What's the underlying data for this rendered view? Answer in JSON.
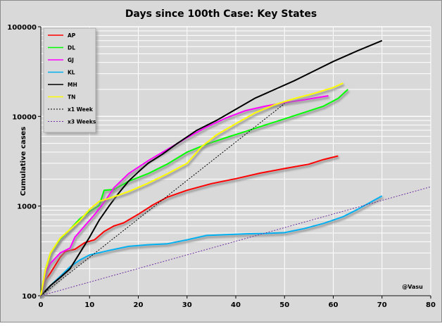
{
  "chart_data": {
    "type": "line",
    "title": "Days since 100th Case: Key States",
    "xlabel": "",
    "ylabel": "Cumulative cases",
    "xlim": [
      0,
      80
    ],
    "ylim": [
      100,
      100000
    ],
    "yscale": "log",
    "x_ticks": [
      0,
      10,
      20,
      30,
      40,
      50,
      60,
      70,
      80
    ],
    "y_ticks": [
      100,
      1000,
      10000,
      100000
    ],
    "y_tick_labels": [
      "100",
      "1000",
      "10000",
      "100000"
    ],
    "grid": true,
    "legend_position": "top-left",
    "annotation": "@Vasu",
    "colors": {
      "background": "#d9d9d9",
      "grid": "#ffffff"
    },
    "series": [
      {
        "name": "AP",
        "color": "#ff0000",
        "shadow": true,
        "points": [
          [
            0,
            100
          ],
          [
            1,
            150
          ],
          [
            2,
            180
          ],
          [
            4,
            270
          ],
          [
            5,
            310
          ],
          [
            7,
            330
          ],
          [
            9,
            390
          ],
          [
            11,
            420
          ],
          [
            13,
            520
          ],
          [
            15,
            600
          ],
          [
            17,
            650
          ],
          [
            20,
            810
          ],
          [
            23,
            1030
          ],
          [
            26,
            1260
          ],
          [
            30,
            1500
          ],
          [
            35,
            1780
          ],
          [
            40,
            2020
          ],
          [
            45,
            2330
          ],
          [
            50,
            2620
          ],
          [
            55,
            2930
          ],
          [
            58,
            3300
          ],
          [
            61,
            3620
          ]
        ]
      },
      {
        "name": "DL",
        "color": "#00ff00",
        "shadow": true,
        "points": [
          [
            0,
            100
          ],
          [
            1,
            200
          ],
          [
            2,
            300
          ],
          [
            4,
            430
          ],
          [
            6,
            550
          ],
          [
            8,
            720
          ],
          [
            10,
            870
          ],
          [
            12,
            1020
          ],
          [
            13,
            1500
          ],
          [
            15,
            1530
          ],
          [
            18,
            1890
          ],
          [
            22,
            2300
          ],
          [
            26,
            2950
          ],
          [
            30,
            4000
          ],
          [
            34,
            4900
          ],
          [
            38,
            5800
          ],
          [
            42,
            6800
          ],
          [
            46,
            8000
          ],
          [
            50,
            9400
          ],
          [
            55,
            11500
          ],
          [
            58,
            13000
          ],
          [
            61,
            15900
          ],
          [
            63,
            20000
          ]
        ]
      },
      {
        "name": "GJ",
        "color": "#ff00ff",
        "shadow": true,
        "points": [
          [
            0,
            100
          ],
          [
            1,
            180
          ],
          [
            2,
            230
          ],
          [
            4,
            300
          ],
          [
            6,
            340
          ],
          [
            7,
            450
          ],
          [
            9,
            600
          ],
          [
            11,
            800
          ],
          [
            13,
            1100
          ],
          [
            15,
            1600
          ],
          [
            18,
            2300
          ],
          [
            22,
            3200
          ],
          [
            26,
            4300
          ],
          [
            30,
            5800
          ],
          [
            34,
            7600
          ],
          [
            38,
            9600
          ],
          [
            42,
            11600
          ],
          [
            46,
            13000
          ],
          [
            50,
            14200
          ],
          [
            54,
            15300
          ],
          [
            59,
            17000
          ]
        ]
      },
      {
        "name": "KL",
        "color": "#00b0f0",
        "shadow": true,
        "points": [
          [
            0,
            100
          ],
          [
            2,
            130
          ],
          [
            4,
            165
          ],
          [
            6,
            210
          ],
          [
            8,
            250
          ],
          [
            10,
            285
          ],
          [
            14,
            320
          ],
          [
            18,
            355
          ],
          [
            22,
            370
          ],
          [
            26,
            380
          ],
          [
            30,
            420
          ],
          [
            34,
            470
          ],
          [
            38,
            480
          ],
          [
            42,
            490
          ],
          [
            46,
            495
          ],
          [
            50,
            505
          ],
          [
            54,
            560
          ],
          [
            58,
            640
          ],
          [
            62,
            760
          ],
          [
            65,
            920
          ],
          [
            68,
            1130
          ],
          [
            70,
            1300
          ]
        ]
      },
      {
        "name": "MH",
        "color": "#000000",
        "shadow": false,
        "points": [
          [
            0,
            100
          ],
          [
            2,
            130
          ],
          [
            4,
            160
          ],
          [
            6,
            200
          ],
          [
            8,
            300
          ],
          [
            10,
            450
          ],
          [
            12,
            700
          ],
          [
            14,
            1000
          ],
          [
            16,
            1400
          ],
          [
            18,
            1900
          ],
          [
            20,
            2400
          ],
          [
            22,
            3000
          ],
          [
            25,
            3800
          ],
          [
            28,
            5000
          ],
          [
            32,
            7000
          ],
          [
            36,
            9000
          ],
          [
            40,
            12000
          ],
          [
            44,
            16000
          ],
          [
            48,
            20000
          ],
          [
            52,
            25000
          ],
          [
            56,
            32000
          ],
          [
            60,
            41000
          ],
          [
            65,
            54000
          ],
          [
            70,
            70000
          ]
        ]
      },
      {
        "name": "TN",
        "color": "#ffff00",
        "shadow": true,
        "points": [
          [
            0,
            100
          ],
          [
            1,
            200
          ],
          [
            2,
            300
          ],
          [
            4,
            440
          ],
          [
            6,
            550
          ],
          [
            8,
            690
          ],
          [
            10,
            920
          ],
          [
            12,
            1130
          ],
          [
            15,
            1270
          ],
          [
            18,
            1450
          ],
          [
            22,
            1800
          ],
          [
            26,
            2300
          ],
          [
            30,
            3000
          ],
          [
            33,
            4600
          ],
          [
            36,
            6200
          ],
          [
            40,
            8300
          ],
          [
            44,
            11000
          ],
          [
            48,
            13500
          ],
          [
            52,
            15800
          ],
          [
            56,
            18000
          ],
          [
            60,
            21000
          ],
          [
            62,
            23500
          ]
        ]
      },
      {
        "name": "x1 Week",
        "color": "#000000",
        "dashed": true,
        "shadow": false,
        "points": [
          [
            0,
            100
          ],
          [
            50,
            13900
          ]
        ]
      },
      {
        "name": "x3 Weeks",
        "color": "#7030a0",
        "dashed": true,
        "shadow": false,
        "points": [
          [
            0,
            100
          ],
          [
            80,
            1640
          ]
        ]
      }
    ]
  }
}
